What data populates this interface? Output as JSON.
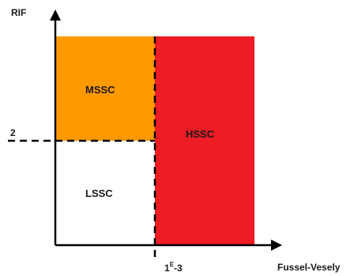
{
  "diagram": {
    "y_axis_label": "RIF",
    "x_axis_label": "Fussel-Vesely",
    "y_threshold_label": "2",
    "x_threshold_base": "1",
    "x_threshold_exponent": "E",
    "x_threshold_suffix": "-3",
    "regions": {
      "mssc": {
        "label": "MSSC",
        "color": "#FF9900"
      },
      "hssc": {
        "label": "HSSC",
        "color": "#EE1C25"
      },
      "lssc": {
        "label": "LSSC",
        "color": "#FFFFFF"
      }
    }
  }
}
